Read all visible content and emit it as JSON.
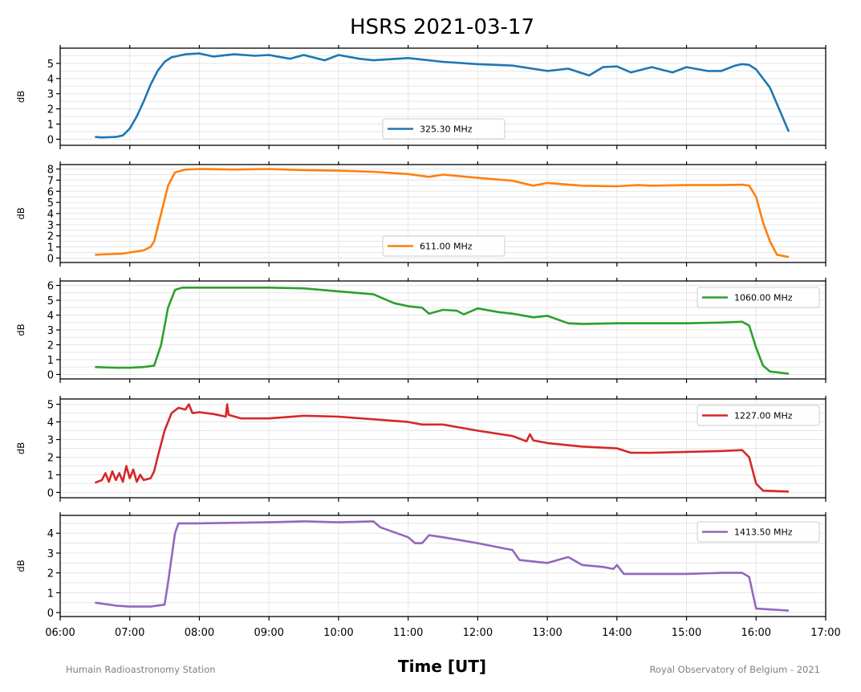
{
  "chart_data": {
    "type": "line",
    "title": "HSRS 2021-03-17",
    "xlabel": "Time [UT]",
    "credit_left": "Humain Radioastronomy Station",
    "credit_right": "Royal Observatory of Belgium - 2021",
    "x_ticks": [
      "06:00",
      "07:00",
      "08:00",
      "09:00",
      "10:00",
      "11:00",
      "12:00",
      "13:00",
      "14:00",
      "15:00",
      "16:00",
      "17:00"
    ],
    "xlim_hours": [
      6,
      17
    ],
    "grid": true,
    "panels": [
      {
        "series_name": "325.30 MHz",
        "color": "#1f77b4",
        "ylabel": "dB",
        "ylim": [
          -0.4,
          6.0
        ],
        "yticks": [
          0,
          1,
          2,
          3,
          4,
          5
        ],
        "legend": "lower-center",
        "x": [
          6.5,
          6.6,
          6.8,
          6.9,
          7.0,
          7.1,
          7.2,
          7.3,
          7.4,
          7.5,
          7.6,
          7.7,
          7.8,
          8.0,
          8.2,
          8.5,
          8.8,
          9.0,
          9.3,
          9.5,
          9.8,
          10.0,
          10.3,
          10.5,
          11.0,
          11.5,
          12.0,
          12.5,
          13.0,
          13.3,
          13.6,
          13.8,
          14.0,
          14.2,
          14.5,
          14.8,
          15.0,
          15.3,
          15.5,
          15.7,
          15.8,
          15.9,
          16.0,
          16.2,
          16.47
        ],
        "y": [
          0.15,
          0.12,
          0.15,
          0.25,
          0.7,
          1.5,
          2.5,
          3.6,
          4.5,
          5.1,
          5.4,
          5.5,
          5.6,
          5.65,
          5.45,
          5.6,
          5.5,
          5.55,
          5.3,
          5.55,
          5.2,
          5.55,
          5.3,
          5.2,
          5.35,
          5.1,
          4.95,
          4.85,
          4.5,
          4.65,
          4.2,
          4.75,
          4.8,
          4.4,
          4.75,
          4.4,
          4.75,
          4.5,
          4.5,
          4.85,
          4.95,
          4.9,
          4.6,
          3.4,
          0.5
        ]
      },
      {
        "series_name": "611.00 MHz",
        "color": "#ff7f0e",
        "ylabel": "dB",
        "ylim": [
          -0.4,
          8.4
        ],
        "yticks": [
          0,
          1,
          2,
          3,
          4,
          5,
          6,
          7,
          8
        ],
        "legend": "lower-center",
        "x": [
          6.5,
          6.7,
          6.9,
          7.0,
          7.2,
          7.3,
          7.35,
          7.45,
          7.55,
          7.65,
          7.8,
          8.0,
          8.5,
          9.0,
          9.5,
          10.0,
          10.5,
          11.0,
          11.3,
          11.5,
          12.0,
          12.5,
          12.8,
          13.0,
          13.5,
          14.0,
          14.3,
          14.5,
          15.0,
          15.5,
          15.8,
          15.9,
          16.0,
          16.1,
          16.2,
          16.3,
          16.47
        ],
        "y": [
          0.3,
          0.35,
          0.4,
          0.5,
          0.7,
          1.0,
          1.5,
          4.0,
          6.5,
          7.7,
          7.95,
          8.0,
          7.95,
          8.0,
          7.9,
          7.85,
          7.75,
          7.55,
          7.3,
          7.5,
          7.2,
          6.95,
          6.5,
          6.75,
          6.5,
          6.45,
          6.55,
          6.5,
          6.55,
          6.55,
          6.6,
          6.5,
          5.5,
          3.2,
          1.5,
          0.3,
          0.1
        ]
      },
      {
        "series_name": "1060.00 MHz",
        "color": "#2ca02c",
        "ylabel": "dB",
        "ylim": [
          -0.3,
          6.3
        ],
        "yticks": [
          0,
          1,
          2,
          3,
          4,
          5,
          6
        ],
        "legend": "upper-right",
        "x": [
          6.5,
          6.8,
          7.0,
          7.2,
          7.35,
          7.45,
          7.55,
          7.65,
          7.75,
          8.0,
          9.0,
          9.5,
          10.0,
          10.5,
          10.8,
          11.0,
          11.2,
          11.3,
          11.5,
          11.7,
          11.8,
          12.0,
          12.3,
          12.5,
          12.8,
          13.0,
          13.3,
          13.5,
          14.0,
          14.5,
          15.0,
          15.5,
          15.8,
          15.9,
          16.0,
          16.1,
          16.2,
          16.47
        ],
        "y": [
          0.5,
          0.45,
          0.45,
          0.5,
          0.6,
          2.0,
          4.5,
          5.7,
          5.85,
          5.85,
          5.85,
          5.8,
          5.6,
          5.4,
          4.8,
          4.6,
          4.5,
          4.1,
          4.35,
          4.3,
          4.05,
          4.45,
          4.2,
          4.1,
          3.85,
          3.95,
          3.45,
          3.4,
          3.45,
          3.45,
          3.45,
          3.5,
          3.55,
          3.3,
          1.8,
          0.6,
          0.2,
          0.05
        ]
      },
      {
        "series_name": "1227.00 MHz",
        "color": "#d62728",
        "ylabel": "dB",
        "ylim": [
          -0.3,
          5.3
        ],
        "yticks": [
          0,
          1,
          2,
          3,
          4,
          5
        ],
        "legend": "upper-right",
        "x": [
          6.5,
          6.6,
          6.65,
          6.7,
          6.75,
          6.8,
          6.85,
          6.9,
          6.95,
          7.0,
          7.05,
          7.1,
          7.15,
          7.2,
          7.3,
          7.35,
          7.4,
          7.5,
          7.6,
          7.7,
          7.8,
          7.85,
          7.9,
          8.0,
          8.2,
          8.38,
          8.4,
          8.42,
          8.6,
          9.0,
          9.5,
          10.0,
          10.5,
          11.0,
          11.2,
          11.5,
          12.0,
          12.5,
          12.7,
          12.75,
          12.8,
          13.0,
          13.5,
          14.0,
          14.2,
          14.5,
          15.0,
          15.5,
          15.8,
          15.9,
          16.0,
          16.1,
          16.47
        ],
        "y": [
          0.55,
          0.7,
          1.1,
          0.6,
          1.2,
          0.7,
          1.1,
          0.6,
          1.5,
          0.8,
          1.3,
          0.6,
          1.0,
          0.7,
          0.8,
          1.2,
          2.0,
          3.5,
          4.5,
          4.8,
          4.7,
          5.0,
          4.5,
          4.55,
          4.45,
          4.3,
          5.0,
          4.4,
          4.2,
          4.2,
          4.35,
          4.3,
          4.15,
          4.0,
          3.85,
          3.85,
          3.5,
          3.2,
          2.9,
          3.3,
          2.95,
          2.8,
          2.6,
          2.5,
          2.25,
          2.25,
          2.3,
          2.35,
          2.4,
          2.0,
          0.5,
          0.1,
          0.05
        ]
      },
      {
        "series_name": "1413.50 MHz",
        "color": "#9467bd",
        "ylabel": "dB",
        "ylim": [
          -0.2,
          4.9
        ],
        "yticks": [
          0,
          1,
          2,
          3,
          4
        ],
        "legend": "upper-right",
        "x": [
          6.5,
          6.8,
          7.0,
          7.3,
          7.5,
          7.55,
          7.65,
          7.7,
          8.0,
          9.0,
          9.5,
          10.0,
          10.5,
          10.6,
          11.0,
          11.1,
          11.2,
          11.3,
          11.5,
          12.0,
          12.5,
          12.6,
          13.0,
          13.3,
          13.5,
          13.8,
          13.95,
          14.0,
          14.1,
          14.5,
          15.0,
          15.5,
          15.8,
          15.9,
          16.0,
          16.47
        ],
        "y": [
          0.5,
          0.35,
          0.3,
          0.3,
          0.4,
          1.5,
          4.0,
          4.5,
          4.5,
          4.55,
          4.6,
          4.55,
          4.6,
          4.3,
          3.8,
          3.5,
          3.5,
          3.9,
          3.8,
          3.5,
          3.15,
          2.65,
          2.5,
          2.8,
          2.4,
          2.3,
          2.2,
          2.4,
          1.95,
          1.95,
          1.95,
          2.0,
          2.0,
          1.8,
          0.2,
          0.1
        ]
      }
    ]
  }
}
